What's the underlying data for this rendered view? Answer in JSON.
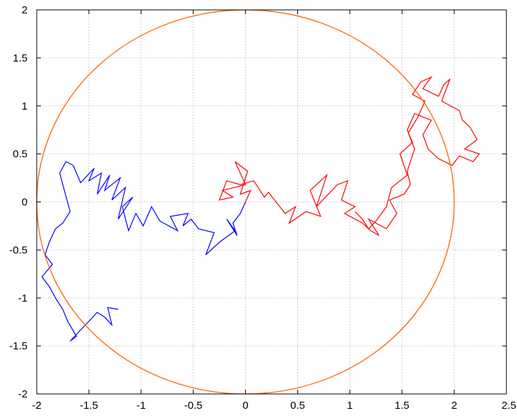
{
  "chart_data": {
    "type": "line",
    "title": "",
    "xlabel": "",
    "ylabel": "",
    "xlim": [
      -2,
      2.5
    ],
    "ylim": [
      -2,
      2
    ],
    "grid": true,
    "legend": "none",
    "xticks": [
      "-2",
      "-1.5",
      "-1",
      "-0.5",
      "0",
      "0.5",
      "1",
      "1.5",
      "2",
      "2.5"
    ],
    "xtick_values": [
      -2,
      -1.5,
      -1,
      -0.5,
      0,
      0.5,
      1,
      1.5,
      2,
      2.5
    ],
    "yticks": [
      "2",
      "1.5",
      "1",
      "0.5",
      "0",
      "-0.5",
      "-1",
      "-1.5",
      "-2"
    ],
    "ytick_values": [
      2,
      1.5,
      1,
      0.5,
      0,
      -0.5,
      -1,
      -1.5,
      -2
    ],
    "series": [
      {
        "color": "#ff0000",
        "x": [
          0.0,
          0.05,
          -0.05,
          0.02,
          -0.1,
          0.0,
          -0.22,
          -0.12,
          -0.25,
          -0.18,
          -0.05,
          0.08,
          0.18,
          0.22,
          0.38,
          0.48,
          0.42,
          0.58,
          0.72,
          0.62,
          0.78,
          0.68,
          0.88,
          0.98,
          0.92,
          1.05,
          0.95,
          1.12,
          1.2,
          1.28,
          1.18,
          1.35,
          1.45,
          1.38,
          1.52,
          1.58,
          1.55,
          1.62,
          1.56,
          1.65,
          1.72,
          1.6,
          1.68,
          1.78,
          1.7,
          1.85,
          1.9,
          1.96,
          1.88,
          2.05,
          2.08,
          2.15,
          2.22,
          2.1,
          2.24,
          2.18,
          2.05,
          1.98,
          1.85,
          1.75,
          1.7,
          1.78,
          1.62,
          1.55,
          1.6,
          1.48,
          1.55,
          1.4,
          1.35,
          1.25,
          1.18,
          1.12,
          1.05
        ],
        "y": [
          0.0,
          0.12,
          0.08,
          0.32,
          0.42,
          0.18,
          0.12,
          0.05,
          0.02,
          0.22,
          0.18,
          0.22,
          0.05,
          0.1,
          -0.12,
          -0.05,
          -0.22,
          -0.1,
          -0.15,
          0.12,
          0.28,
          -0.05,
          0.18,
          0.22,
          0.02,
          -0.05,
          -0.12,
          -0.22,
          -0.3,
          -0.35,
          -0.18,
          -0.28,
          -0.12,
          0.02,
          0.08,
          0.18,
          0.32,
          0.55,
          0.72,
          0.88,
          1.05,
          1.12,
          1.25,
          1.3,
          1.18,
          1.1,
          1.22,
          1.28,
          1.05,
          0.95,
          0.85,
          0.78,
          0.65,
          0.55,
          0.5,
          0.42,
          0.48,
          0.38,
          0.45,
          0.55,
          0.7,
          0.85,
          0.92,
          0.75,
          0.62,
          0.5,
          0.28,
          0.15,
          -0.05,
          -0.2,
          -0.28,
          -0.18,
          -0.1
        ]
      },
      {
        "color": "#0000ff",
        "x": [
          0.0,
          -0.05,
          -0.12,
          -0.08,
          -0.18,
          -0.1,
          -0.25,
          -0.38,
          -0.3,
          -0.45,
          -0.52,
          -0.6,
          -0.55,
          -0.72,
          -0.65,
          -0.82,
          -0.9,
          -0.98,
          -1.05,
          -1.12,
          -1.18,
          -1.08,
          -1.22,
          -1.15,
          -1.28,
          -1.2,
          -1.35,
          -1.3,
          -1.42,
          -1.38,
          -1.5,
          -1.45,
          -1.58,
          -1.65,
          -1.72,
          -1.78,
          -1.68,
          -1.75,
          -1.82,
          -1.88,
          -1.92,
          -1.85,
          -1.95,
          -1.88,
          -1.82,
          -1.75,
          -1.7,
          -1.62,
          -1.68,
          -1.55,
          -1.48,
          -1.42,
          -1.35,
          -1.28,
          -1.32,
          -1.22
        ],
        "y": [
          0.0,
          -0.12,
          -0.22,
          -0.35,
          -0.18,
          -0.3,
          -0.42,
          -0.55,
          -0.32,
          -0.28,
          -0.18,
          -0.25,
          -0.12,
          -0.15,
          -0.3,
          -0.2,
          -0.05,
          -0.25,
          -0.12,
          -0.3,
          -0.05,
          0.05,
          -0.18,
          0.15,
          0.02,
          0.25,
          0.12,
          0.28,
          0.08,
          0.3,
          0.22,
          0.35,
          0.2,
          0.38,
          0.42,
          0.3,
          -0.1,
          -0.22,
          -0.28,
          -0.42,
          -0.55,
          -0.65,
          -0.78,
          -0.88,
          -1.0,
          -1.12,
          -1.25,
          -1.4,
          -1.45,
          -1.3,
          -1.22,
          -1.15,
          -1.2,
          -1.28,
          -1.1,
          -1.12
        ]
      },
      {
        "color": "#ff6600",
        "shape": "circle",
        "center": [
          0.0,
          0.0
        ],
        "radius": 2.0
      }
    ]
  }
}
